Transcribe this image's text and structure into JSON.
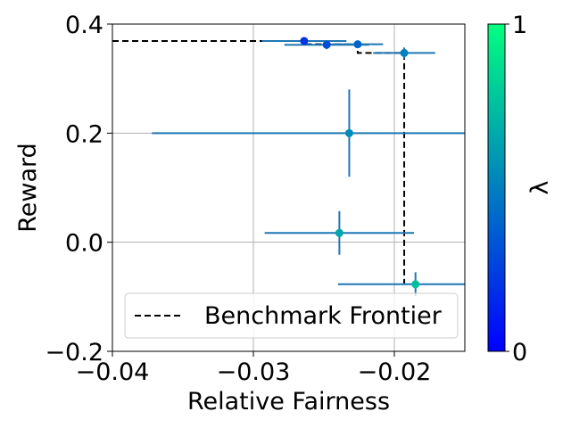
{
  "chart_data": {
    "type": "scatter",
    "title": "",
    "xlabel": "Relative Fairness",
    "ylabel": "Reward",
    "xlim": [
      -0.04,
      -0.015
    ],
    "ylim": [
      -0.2,
      0.4
    ],
    "x_ticks": [
      -0.04,
      -0.03,
      -0.02
    ],
    "x_tick_labels": [
      "−0.04",
      "−0.03",
      "−0.02"
    ],
    "y_ticks": [
      -0.2,
      0.0,
      0.2,
      0.4
    ],
    "y_tick_labels": [
      "−0.2",
      "0.0",
      "0.2",
      "0.4"
    ],
    "grid": true,
    "legend": {
      "placement": "lower-left",
      "entries": [
        {
          "label": "Benchmark Frontier",
          "style": "dashed",
          "color": "#000000"
        }
      ]
    },
    "series": [
      {
        "marker": "circle-with-errorbars",
        "points": [
          {
            "x": -0.0264,
            "y": 0.369,
            "xerr": 0.003,
            "yerr": 0.004,
            "lambda": 0.2
          },
          {
            "x": -0.0248,
            "y": 0.362,
            "xerr": 0.003,
            "yerr": 0.008,
            "lambda": 0.3
          },
          {
            "x": -0.0226,
            "y": 0.363,
            "xerr": 0.0018,
            "yerr": 0.004,
            "lambda": 0.4
          },
          {
            "x": -0.0193,
            "y": 0.347,
            "xerr": 0.0022,
            "yerr": 0.01,
            "lambda": 0.5
          },
          {
            "x": -0.0232,
            "y": 0.2,
            "xerr": 0.014,
            "yerr": 0.08,
            "lambda": 0.55
          },
          {
            "x": -0.0239,
            "y": 0.017,
            "xerr": 0.0053,
            "yerr": 0.04,
            "lambda": 0.65
          },
          {
            "x": -0.0185,
            "y": -0.077,
            "xerr": 0.0055,
            "yerr": 0.022,
            "lambda": 0.75
          }
        ]
      }
    ],
    "frontier": {
      "name": "Benchmark Frontier",
      "x": [
        -0.04,
        -0.0264,
        -0.0264,
        -0.0226,
        -0.0226,
        -0.0193,
        -0.0193
      ],
      "y": [
        0.369,
        0.369,
        0.363,
        0.363,
        0.347,
        0.347,
        -0.077
      ]
    },
    "colorbar": {
      "label": "λ",
      "min_label": "0",
      "max_label": "1",
      "colormap": "winter",
      "color_low": "#0000ff",
      "color_high": "#00ff80"
    },
    "errorbar_color": "#1f77b4"
  }
}
